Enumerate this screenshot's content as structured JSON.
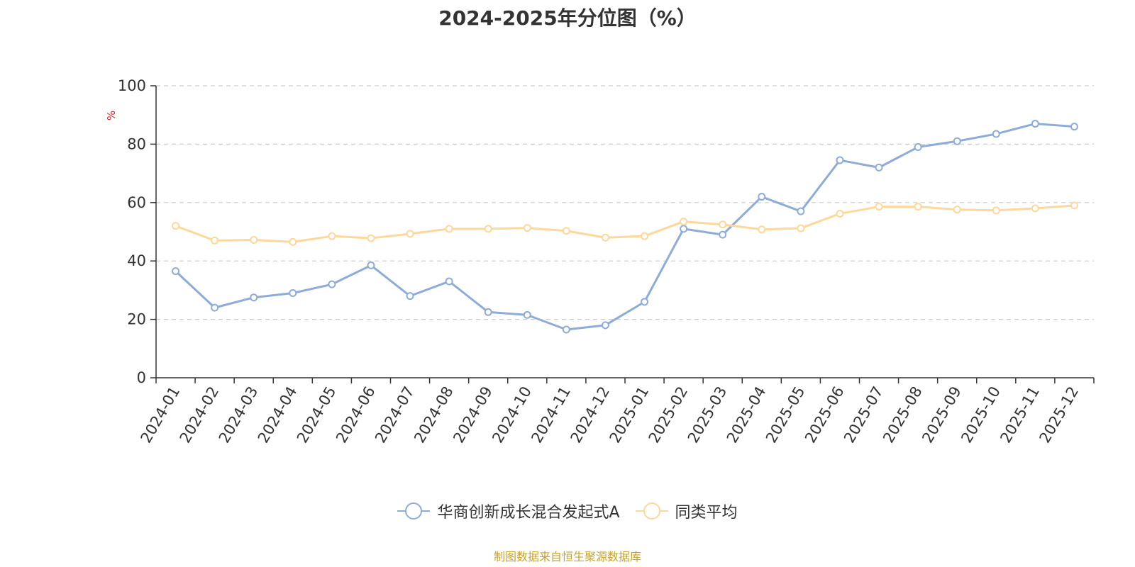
{
  "chart_data": {
    "type": "line",
    "title": "2024-2025年分位图（%）",
    "ylabel": "%",
    "ylim": [
      0,
      100
    ],
    "yticks": [
      "0",
      "20",
      "40",
      "60",
      "80",
      "100"
    ],
    "categories": [
      "2024-01",
      "2024-02",
      "2024-03",
      "2024-04",
      "2024-05",
      "2024-06",
      "2024-07",
      "2024-08",
      "2024-09",
      "2024-10",
      "2024-11",
      "2024-12",
      "2025-01",
      "2025-02",
      "2025-03",
      "2025-04",
      "2025-05",
      "2025-06",
      "2025-07",
      "2025-08",
      "2025-09",
      "2025-10",
      "2025-11",
      "2025-12"
    ],
    "grid": true,
    "legend_position": "bottom",
    "series": [
      {
        "name": "华商创新成长混合发起式A",
        "color": "#8eacd9",
        "values": [
          36.5,
          24.0,
          27.5,
          29.0,
          32.0,
          38.5,
          28.0,
          33.0,
          22.5,
          21.5,
          16.5,
          18.0,
          26.0,
          51.0,
          49.0,
          62.0,
          57.0,
          74.5,
          72.0,
          79.0,
          81.0,
          83.5,
          87.0,
          86.0
        ]
      },
      {
        "name": "同类平均",
        "color": "#fdd89a",
        "values": [
          52.0,
          47.0,
          47.2,
          46.5,
          48.5,
          47.8,
          49.3,
          51.0,
          51.0,
          51.3,
          50.3,
          48.0,
          48.5,
          53.5,
          52.5,
          50.8,
          51.2,
          56.2,
          58.6,
          58.6,
          57.6,
          57.3,
          58.0,
          59.0
        ]
      }
    ]
  },
  "footer": {
    "source": "制图数据来自恒生聚源数据库"
  }
}
